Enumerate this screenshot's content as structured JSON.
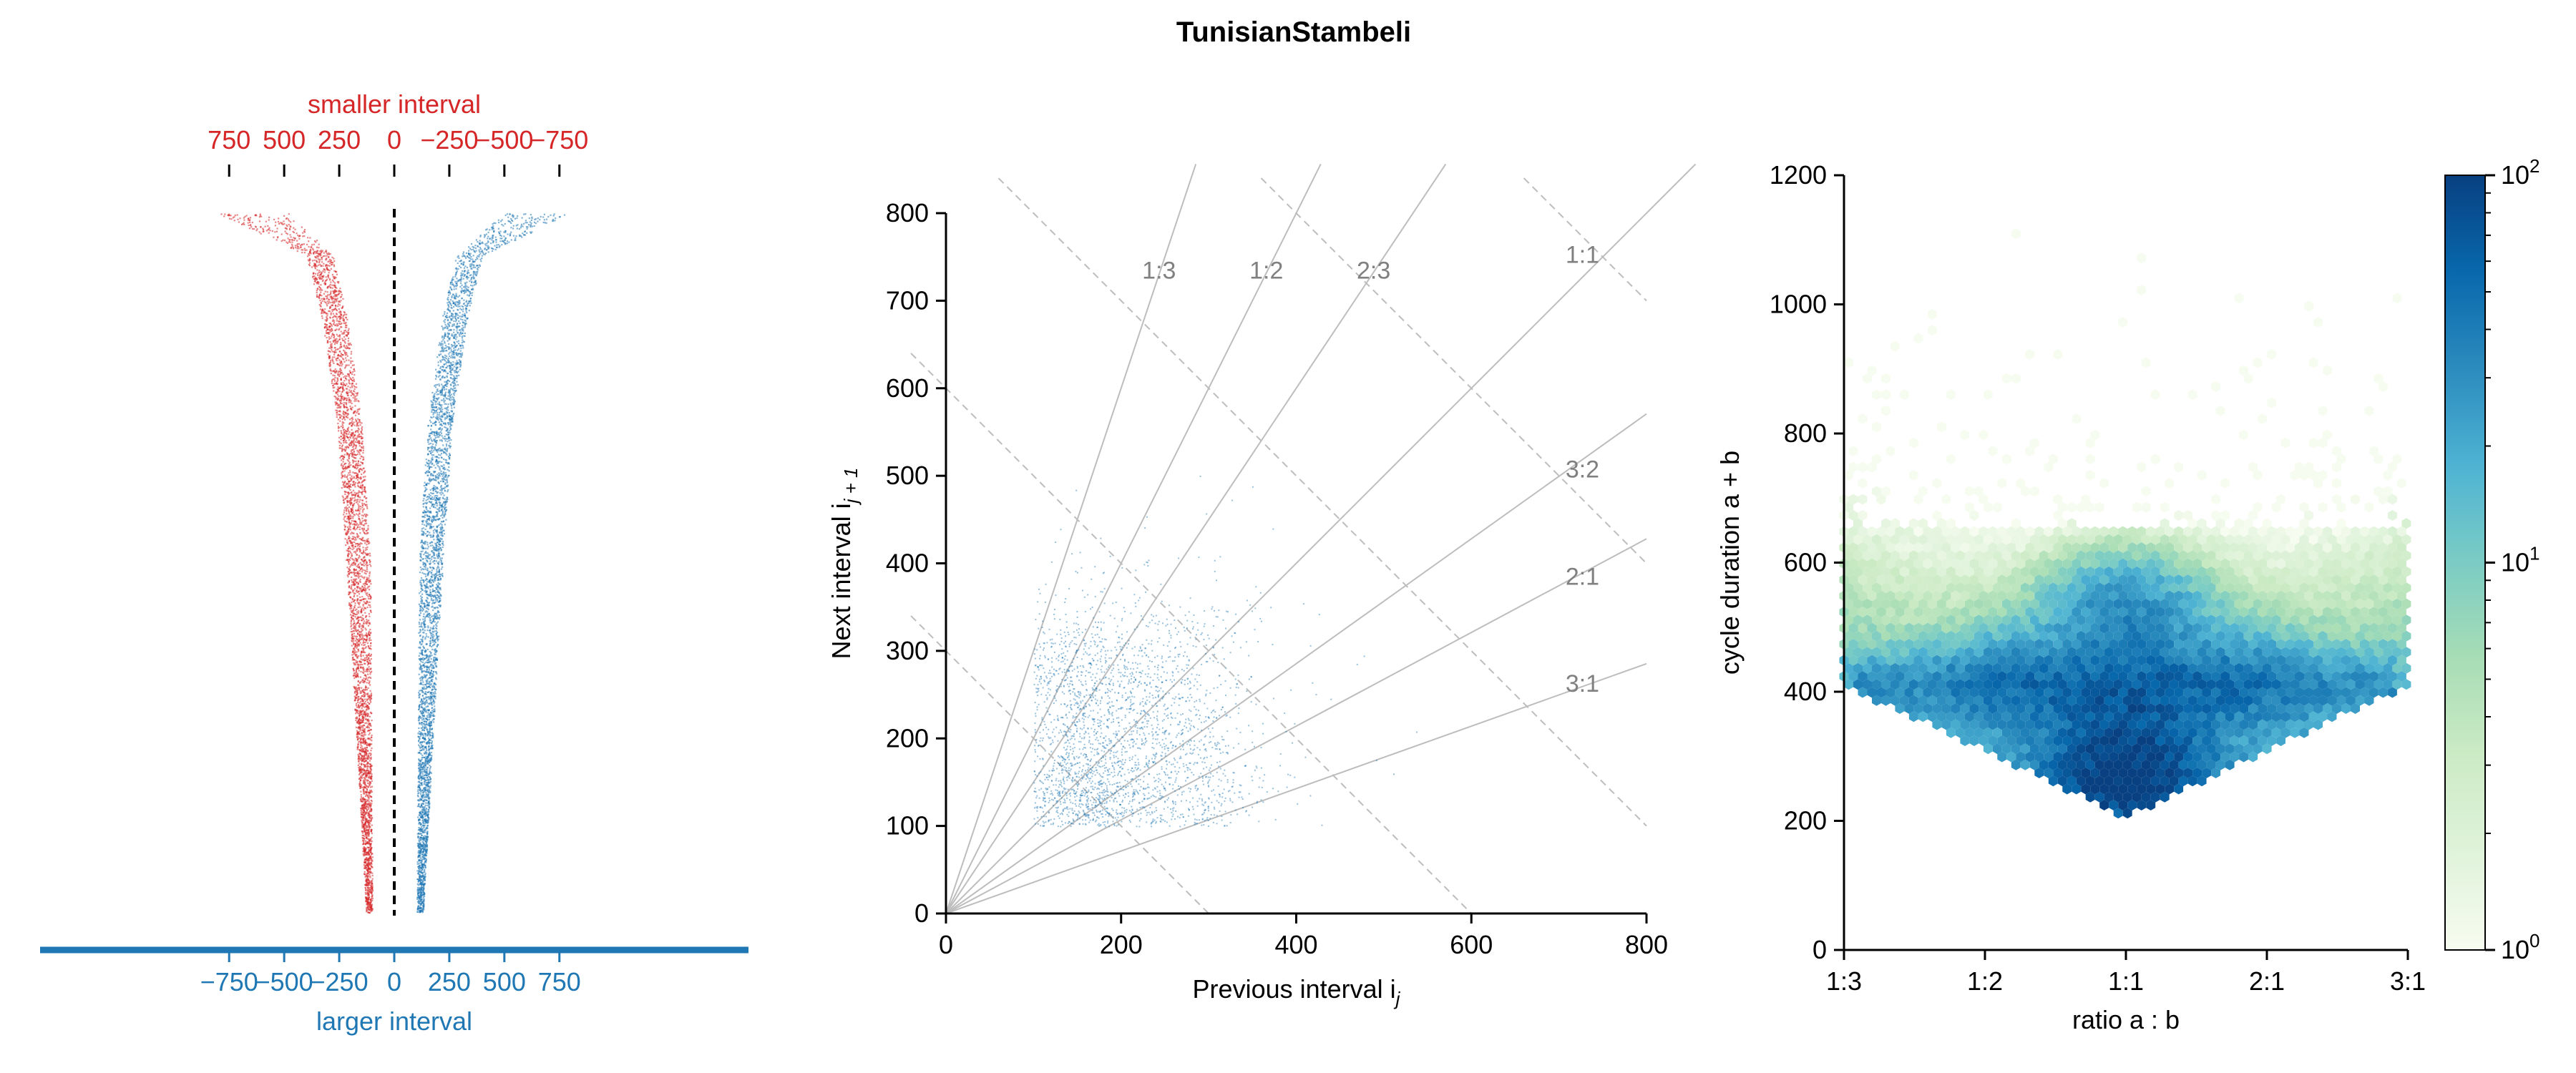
{
  "figure": {
    "title": "TunisianStambeli"
  },
  "colors": {
    "red": "#d62728",
    "blue": "#1f77b4",
    "grid": "#bdbdbd",
    "ratio_label": "#808080"
  },
  "chart_data": [
    {
      "type": "scatter",
      "title": "",
      "top_axis": {
        "label": "smaller interval",
        "ticks": [
          750,
          500,
          250,
          0,
          -250,
          -500,
          -750
        ],
        "tick_labels": [
          "750",
          "500",
          "250",
          "0",
          "−250",
          "−500",
          "−750"
        ],
        "color": "#d62728"
      },
      "bottom_axis": {
        "label": "larger interval",
        "ticks": [
          -750,
          -500,
          -250,
          0,
          250,
          500,
          750
        ],
        "tick_labels": [
          "−750",
          "−500",
          "−250",
          "0",
          "250",
          "500",
          "750"
        ],
        "color": "#1f77b4"
      },
      "xlim": [
        -810,
        810
      ],
      "y": "sorted rank of interval pairs (unlabelled)",
      "center_line": "dashed vertical at 0",
      "series": [
        {
          "color": "#d62728",
          "side": "left",
          "profile_inner": [
            [
              0,
              -100
            ],
            [
              0.5,
              -110
            ],
            [
              0.7,
              -150
            ],
            [
              0.85,
              -215
            ],
            [
              0.94,
              -280
            ],
            [
              1.0,
              -480
            ]
          ],
          "profile_outer": [
            [
              0,
              -130
            ],
            [
              0.4,
              -200
            ],
            [
              0.7,
              -260
            ],
            [
              0.85,
              -330
            ],
            [
              0.94,
              -400
            ],
            [
              1.0,
              -800
            ]
          ]
        },
        {
          "color": "#1f77b4",
          "side": "right",
          "profile_inner": [
            [
              0,
              100
            ],
            [
              0.5,
              110
            ],
            [
              0.7,
              150
            ],
            [
              0.85,
              215
            ],
            [
              0.94,
              280
            ],
            [
              1.0,
              480
            ]
          ],
          "profile_outer": [
            [
              0,
              130
            ],
            [
              0.4,
              200
            ],
            [
              0.7,
              260
            ],
            [
              0.85,
              330
            ],
            [
              0.94,
              400
            ],
            [
              1.0,
              800
            ]
          ]
        }
      ]
    },
    {
      "type": "scatter",
      "title": "",
      "xlabel": "Previous interval i",
      "xlabel_sub": "j",
      "ylabel": "Next interval i",
      "ylabel_sub": "j + 1",
      "xlim": [
        0,
        800
      ],
      "ylim": [
        0,
        800
      ],
      "xticks": [
        0,
        200,
        400,
        600,
        800
      ],
      "yticks": [
        0,
        100,
        200,
        300,
        400,
        500,
        600,
        700,
        800
      ],
      "ratio_lines": [
        {
          "label": "1:3",
          "slope": 3
        },
        {
          "label": "1:2",
          "slope": 2
        },
        {
          "label": "2:3",
          "slope": 1.5
        },
        {
          "label": "1:1",
          "slope": 1
        },
        {
          "label": "3:2",
          "slope": 0.6667
        },
        {
          "label": "2:1",
          "slope": 0.5
        },
        {
          "label": "3:1",
          "slope": 0.3333
        }
      ],
      "cycle_lines_sum": [
        300,
        600,
        900,
        1200,
        1500
      ],
      "clusters": [
        {
          "x": 150,
          "y": 140,
          "spread": 45,
          "weight": 0.34
        },
        {
          "x": 230,
          "y": 250,
          "spread": 55,
          "weight": 0.2
        },
        {
          "x": 135,
          "y": 270,
          "spread": 35,
          "weight": 0.12
        },
        {
          "x": 270,
          "y": 130,
          "spread": 45,
          "weight": 0.14
        },
        {
          "x": 200,
          "y": 200,
          "spread": 110,
          "weight": 0.2
        }
      ],
      "series_color": "#1f77b4"
    },
    {
      "type": "heatmap",
      "subtype": "hexbin",
      "title": "",
      "xlabel": "ratio a : b",
      "ylabel": "cycle duration a + b",
      "xticks": [
        "1:3",
        "1:2",
        "1:1",
        "2:1",
        "3:1"
      ],
      "xlim": [
        0.25,
        0.75
      ],
      "ylim": [
        0,
        1200
      ],
      "yticks": [
        0,
        200,
        400,
        600,
        800,
        1000,
        1200
      ],
      "colorbar": {
        "scale": "log",
        "min": 1,
        "max": 100,
        "tick_labels": [
          {
            "base": "10",
            "exp": "0"
          },
          {
            "base": "10",
            "exp": "1"
          },
          {
            "base": "10",
            "exp": "2"
          }
        ],
        "colormap": "GnBu"
      },
      "hot_spots": [
        {
          "ratio": 0.5,
          "duration": 270,
          "count": 100
        },
        {
          "ratio": 0.5,
          "duration": 520,
          "count": 30
        },
        {
          "ratio": 0.4,
          "duration": 410,
          "count": 25
        },
        {
          "ratio": 0.6,
          "duration": 410,
          "count": 25
        },
        {
          "ratio": 0.5,
          "duration": 380,
          "count": 40
        }
      ]
    }
  ]
}
